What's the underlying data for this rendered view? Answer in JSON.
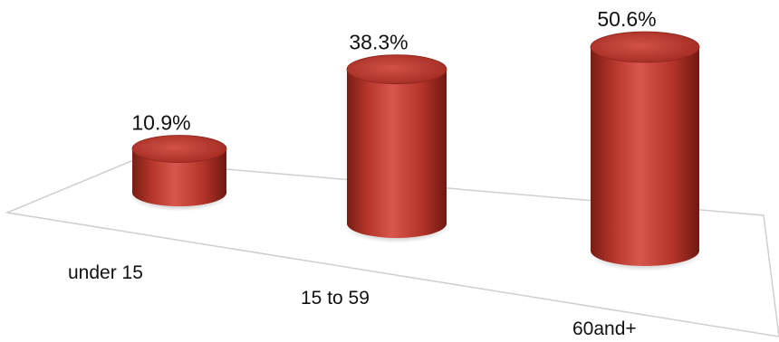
{
  "chart_data": {
    "type": "bar",
    "style": "3d-cylinder",
    "categories": [
      "under 15",
      "15 to 59",
      "60and+"
    ],
    "values": [
      10.9,
      38.3,
      50.6
    ],
    "value_labels": [
      "10.9%",
      "38.3%",
      "50.6%"
    ],
    "title": "",
    "xlabel": "",
    "ylabel": "",
    "ylim": [
      0,
      50.6
    ],
    "grid": false,
    "legend": "none",
    "bar_color": "#c0392b",
    "floor_color": "#d9d9d9"
  }
}
